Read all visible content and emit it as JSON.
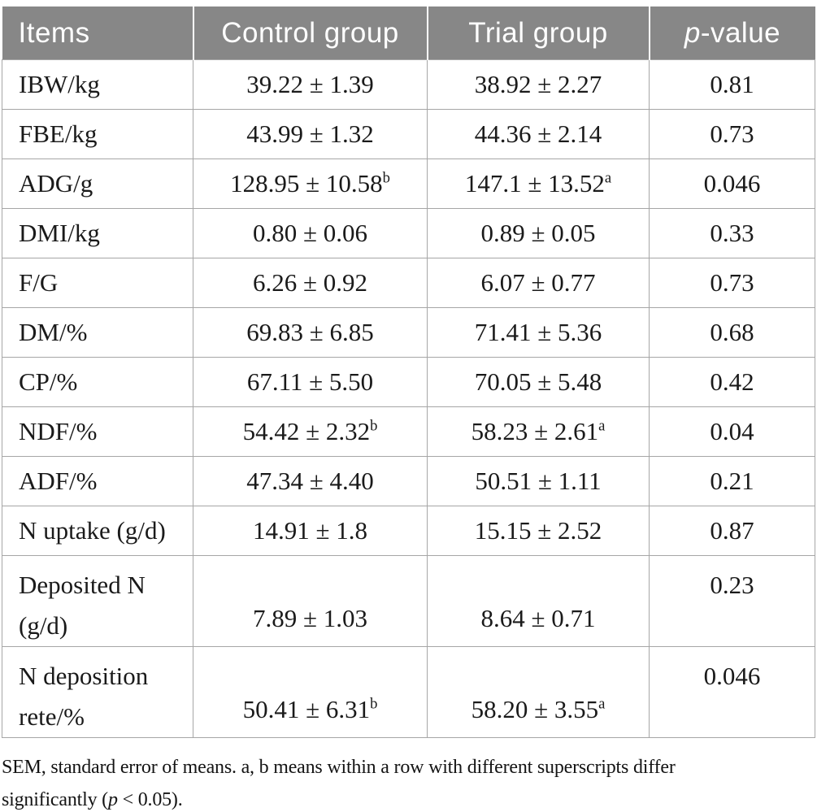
{
  "header": {
    "items": "Items",
    "control": "Control group",
    "trial": "Trial group",
    "pvalue_italic": "p",
    "pvalue_rest": "-value"
  },
  "rows": [
    {
      "item_lines": [
        "IBW/kg"
      ],
      "control": {
        "text": "39.22 ± 1.39",
        "sup": ""
      },
      "trial": {
        "text": "38.92 ± 2.27",
        "sup": ""
      },
      "p": "0.81",
      "tall": false
    },
    {
      "item_lines": [
        "FBE/kg"
      ],
      "control": {
        "text": "43.99 ± 1.32",
        "sup": ""
      },
      "trial": {
        "text": "44.36 ± 2.14",
        "sup": ""
      },
      "p": "0.73",
      "tall": false
    },
    {
      "item_lines": [
        "ADG/g"
      ],
      "control": {
        "text": "128.95 ± 10.58",
        "sup": "b"
      },
      "trial": {
        "text": "147.1 ± 13.52",
        "sup": "a"
      },
      "p": "0.046",
      "tall": false
    },
    {
      "item_lines": [
        "DMI/kg"
      ],
      "control": {
        "text": "0.80 ± 0.06",
        "sup": ""
      },
      "trial": {
        "text": "0.89 ± 0.05",
        "sup": ""
      },
      "p": "0.33",
      "tall": false
    },
    {
      "item_lines": [
        "F/G"
      ],
      "control": {
        "text": "6.26 ± 0.92",
        "sup": ""
      },
      "trial": {
        "text": "6.07 ± 0.77",
        "sup": ""
      },
      "p": "0.73",
      "tall": false
    },
    {
      "item_lines": [
        "DM/%"
      ],
      "control": {
        "text": "69.83 ± 6.85",
        "sup": ""
      },
      "trial": {
        "text": "71.41 ± 5.36",
        "sup": ""
      },
      "p": "0.68",
      "tall": false
    },
    {
      "item_lines": [
        "CP/%"
      ],
      "control": {
        "text": "67.11 ± 5.50",
        "sup": ""
      },
      "trial": {
        "text": "70.05 ± 5.48",
        "sup": ""
      },
      "p": "0.42",
      "tall": false
    },
    {
      "item_lines": [
        "NDF/%"
      ],
      "control": {
        "text": "54.42 ± 2.32",
        "sup": "b"
      },
      "trial": {
        "text": "58.23 ± 2.61",
        "sup": "a"
      },
      "p": "0.04",
      "tall": false
    },
    {
      "item_lines": [
        "ADF/%"
      ],
      "control": {
        "text": "47.34 ± 4.40",
        "sup": ""
      },
      "trial": {
        "text": "50.51 ± 1.11",
        "sup": ""
      },
      "p": "0.21",
      "tall": false
    },
    {
      "item_lines": [
        "N uptake (g/d)"
      ],
      "control": {
        "text": "14.91 ± 1.8",
        "sup": ""
      },
      "trial": {
        "text": "15.15 ± 2.52",
        "sup": ""
      },
      "p": "0.87",
      "tall": false
    },
    {
      "item_lines": [
        "Deposited N",
        "(g/d)"
      ],
      "control": {
        "text": "7.89 ± 1.03",
        "sup": ""
      },
      "trial": {
        "text": "8.64 ± 0.71",
        "sup": ""
      },
      "p": "0.23",
      "tall": true
    },
    {
      "item_lines": [
        "N deposition",
        "rete/%"
      ],
      "control": {
        "text": "50.41 ± 6.31",
        "sup": "b"
      },
      "trial": {
        "text": "58.20 ± 3.55",
        "sup": "a"
      },
      "p": "0.046",
      "tall": true
    }
  ],
  "footnote": {
    "line1": "SEM, standard error of means. a, b means within a row with different superscripts differ",
    "line2_prefix": "significantly (",
    "line2_italic": "p",
    "line2_suffix": " < 0.05)."
  },
  "colors": {
    "header_bg": "#878787",
    "header_text": "#ffffff",
    "border": "#a6a6a6",
    "body_text": "#1a1a1a"
  }
}
